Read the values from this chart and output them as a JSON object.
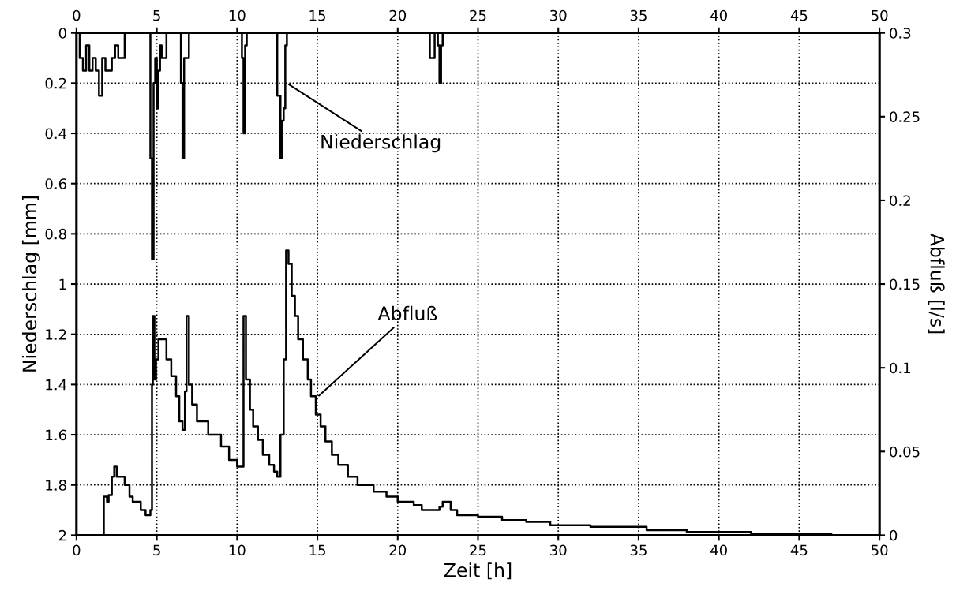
{
  "chart_data": {
    "type": "step",
    "xlabel": "Zeit [h]",
    "ylabel": "Niederschlag [mm]",
    "y2label": "Abfluß [l/s]",
    "xlim": [
      0,
      50
    ],
    "xticks": [
      0,
      5,
      10,
      15,
      20,
      25,
      30,
      35,
      40,
      45,
      50
    ],
    "x2lim": [
      0,
      50
    ],
    "x2ticks": [
      0,
      5,
      10,
      15,
      20,
      25,
      30,
      35,
      40,
      45,
      50
    ],
    "ylim": [
      2,
      0
    ],
    "yticks": [
      0,
      0.2,
      0.4,
      0.6,
      0.8,
      1,
      1.2,
      1.4,
      1.6,
      1.8,
      2
    ],
    "y2lim": [
      0,
      0.3
    ],
    "y2ticks": [
      0,
      0.05,
      0.1,
      0.15,
      0.2,
      0.25,
      0.3
    ],
    "grid": true,
    "line_style": "solid",
    "annotations": [
      {
        "text": "Niederschlag",
        "x": 13.1,
        "y": 0.2
      },
      {
        "text": "Abfluß",
        "x": 15.0,
        "y": 1.45
      }
    ],
    "series": [
      {
        "color": "#000000",
        "x": [
          0.0,
          0.2,
          0.4,
          0.6,
          0.8,
          1.0,
          1.2,
          1.4,
          1.6,
          1.8,
          2.0,
          2.2,
          2.4,
          2.6,
          2.8,
          3.0,
          4.5,
          4.6,
          4.7,
          4.8,
          4.9,
          5.0,
          5.1,
          5.2,
          5.3,
          5.5,
          5.6,
          6.4,
          6.5,
          6.6,
          6.7,
          6.9,
          7.0,
          10.2,
          10.3,
          10.4,
          10.5,
          10.6,
          12.3,
          12.5,
          12.7,
          12.8,
          12.9,
          13.0,
          13.1,
          21.9,
          22.0,
          22.2,
          22.3,
          22.5,
          22.6,
          22.7,
          22.8,
          50
        ],
        "values": [
          0,
          0.1,
          0.15,
          0.05,
          0.15,
          0.1,
          0.15,
          0.25,
          0.1,
          0.15,
          0.15,
          0.1,
          0.05,
          0.1,
          0.1,
          0,
          0,
          0.5,
          0.9,
          0.2,
          0.1,
          0.3,
          0.15,
          0.05,
          0.1,
          0.1,
          0,
          0,
          0.2,
          0.5,
          0.1,
          0.1,
          0,
          0,
          0.1,
          0.4,
          0.05,
          0,
          0,
          0.25,
          0.5,
          0.35,
          0.3,
          0.05,
          0,
          0,
          0.1,
          0.1,
          0,
          0.05,
          0.2,
          0.05,
          0,
          0
        ]
      },
      {
        "color": "#000000",
        "axis": "y2",
        "x": [
          1.6,
          1.7,
          1.9,
          2.0,
          2.2,
          2.35,
          2.5,
          3.0,
          3.3,
          3.5,
          4.0,
          4.3,
          4.5,
          4.6,
          4.7,
          4.75,
          4.85,
          4.95,
          5.1,
          5.5,
          5.6,
          5.9,
          6.2,
          6.4,
          6.6,
          6.75,
          6.85,
          7.0,
          7.2,
          7.5,
          8.2,
          9.0,
          9.5,
          10.0,
          10.3,
          10.4,
          10.55,
          10.8,
          11.0,
          11.3,
          11.6,
          12.0,
          12.3,
          12.5,
          12.7,
          12.9,
          13.05,
          13.2,
          13.4,
          13.6,
          13.8,
          14.1,
          14.4,
          14.6,
          14.9,
          15.2,
          15.5,
          15.9,
          16.3,
          16.9,
          17.5,
          18.5,
          19.3,
          20.0,
          21.0,
          21.5,
          22.3,
          22.6,
          22.8,
          23.3,
          23.7,
          25.0,
          26.5,
          28.0,
          29.5,
          32.0,
          35.5,
          38.0,
          42.0,
          47.0,
          50
        ],
        "values": [
          0,
          0.023,
          0.02,
          0.024,
          0.035,
          0.041,
          0.035,
          0.03,
          0.023,
          0.02,
          0.015,
          0.012,
          0.012,
          0.015,
          0.09,
          0.131,
          0.093,
          0.105,
          0.117,
          0.117,
          0.105,
          0.095,
          0.083,
          0.068,
          0.063,
          0.086,
          0.131,
          0.09,
          0.078,
          0.068,
          0.06,
          0.053,
          0.045,
          0.041,
          0.041,
          0.131,
          0.093,
          0.075,
          0.065,
          0.057,
          0.048,
          0.042,
          0.038,
          0.035,
          0.06,
          0.105,
          0.17,
          0.162,
          0.143,
          0.131,
          0.117,
          0.105,
          0.093,
          0.083,
          0.072,
          0.065,
          0.056,
          0.048,
          0.042,
          0.035,
          0.03,
          0.026,
          0.023,
          0.02,
          0.018,
          0.015,
          0.015,
          0.017,
          0.02,
          0.015,
          0.012,
          0.011,
          0.009,
          0.008,
          0.006,
          0.005,
          0.003,
          0.002,
          0.001,
          0,
          0
        ]
      }
    ]
  }
}
